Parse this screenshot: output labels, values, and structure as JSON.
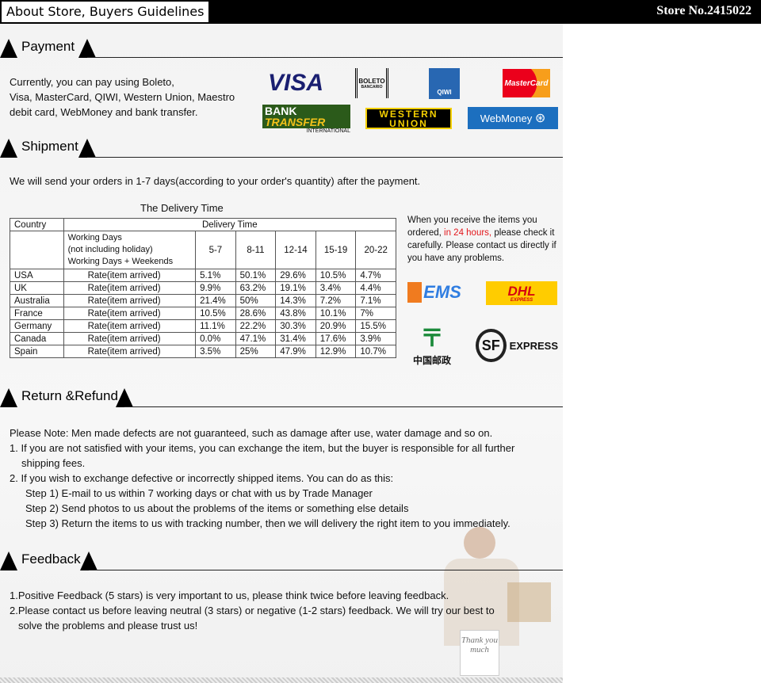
{
  "header": {
    "title": "About Store, Buyers Guidelines",
    "store": "Store No.2415022"
  },
  "payment": {
    "heading": "Payment",
    "text": [
      "Currently, you can pay using Boleto,",
      "Visa, MasterCard, QIWI, Western Union, Maestro",
      "debit card, WebMoney and bank transfer."
    ],
    "logos": {
      "visa": "VISA",
      "boleto": "BOLETO",
      "boleto_sub": "BANCARIO",
      "qiwi": "QIWI",
      "mastercard": "MasterCard",
      "bank": "BANK",
      "transfer": "TRANSFER",
      "international": "INTERNATIONAL",
      "western": "WESTERN",
      "union": "UNION",
      "webmoney": "WebMoney"
    }
  },
  "shipment": {
    "heading": "Shipment",
    "text": "We will send your orders in 1-7 days(according to your order's quantity) after the payment.",
    "table_title": "The Delivery Time",
    "table": {
      "country_header": "Country",
      "delivery_header": "Delivery Time",
      "working_days": [
        "Working Days",
        "(not including holiday)",
        "Working Days + Weekends"
      ],
      "ranges": [
        "5-7",
        "8-11",
        "12-14",
        "15-19",
        "20-22"
      ],
      "rows": [
        {
          "country": "USA",
          "label": "Rate(item arrived)",
          "values": [
            "5.1%",
            "50.1%",
            "29.6%",
            "10.5%",
            "4.7%"
          ]
        },
        {
          "country": "UK",
          "label": "Rate(item arrived)",
          "values": [
            "9.9%",
            "63.2%",
            "19.1%",
            "3.4%",
            "4.4%"
          ]
        },
        {
          "country": "Australia",
          "label": "Rate(item arrived)",
          "values": [
            "21.4%",
            "50%",
            "14.3%",
            "7.2%",
            "7.1%"
          ]
        },
        {
          "country": "France",
          "label": "Rate(item arrived)",
          "values": [
            "10.5%",
            "28.6%",
            "43.8%",
            "10.1%",
            "7%"
          ]
        },
        {
          "country": "Germany",
          "label": "Rate(item arrived)",
          "values": [
            "11.1%",
            "22.2%",
            "30.3%",
            "20.9%",
            "15.5%"
          ]
        },
        {
          "country": "Canada",
          "label": "Rate(item arrived)",
          "values": [
            "0.0%",
            "47.1%",
            "31.4%",
            "17.6%",
            "3.9%"
          ]
        },
        {
          "country": "Spain",
          "label": "Rate(item arrived)",
          "values": [
            "3.5%",
            "25%",
            "47.9%",
            "12.9%",
            "10.7%"
          ]
        }
      ]
    },
    "note_pre": "When you receive the items you ordered, ",
    "note_red": "in 24 hours,",
    "note_post": " please check it carefully. Please contact us directly if you have any problems.",
    "carriers": {
      "ems": "EMS",
      "dhl": "DHL",
      "dhl_sub": "EXPRESS",
      "china_post": "中国邮政",
      "sf": "SF",
      "sf_express": "EXPRESS"
    }
  },
  "refund": {
    "heading": "Return &Refund",
    "lines": [
      "Please Note: Men made defects are not guaranteed, such as damage after use, water  damage and so on.",
      "1. If you are not satisfied with your items, you can exchange the item, but the buyer is responsible for all further",
      "shipping fees.",
      "2. If you wish to exchange defective or incorrectly shipped items. You can do as this:",
      "Step 1) E-mail to us within 7 working days or chat with us by Trade Manager",
      "Step 2) Send photos to us about the problems of the items or something else details",
      "Step 3) Return the items to us with tracking number, then we will delivery the right item to you immediately."
    ]
  },
  "feedback": {
    "heading": "Feedback",
    "lines": [
      "1.Positive Feedback (5 stars) is very important to us, please think twice before leaving feedback.",
      "2.Please contact us before leaving neutral (3 stars) or negative (1-2 stars) feedback. We will try our best to",
      "solve the problems and please trust us!"
    ]
  },
  "image": {
    "sign": "Thank you much"
  },
  "colors": {
    "red": "#e3161b",
    "webmoney": "#1c6fbf",
    "qiwi": "#2867b2"
  }
}
